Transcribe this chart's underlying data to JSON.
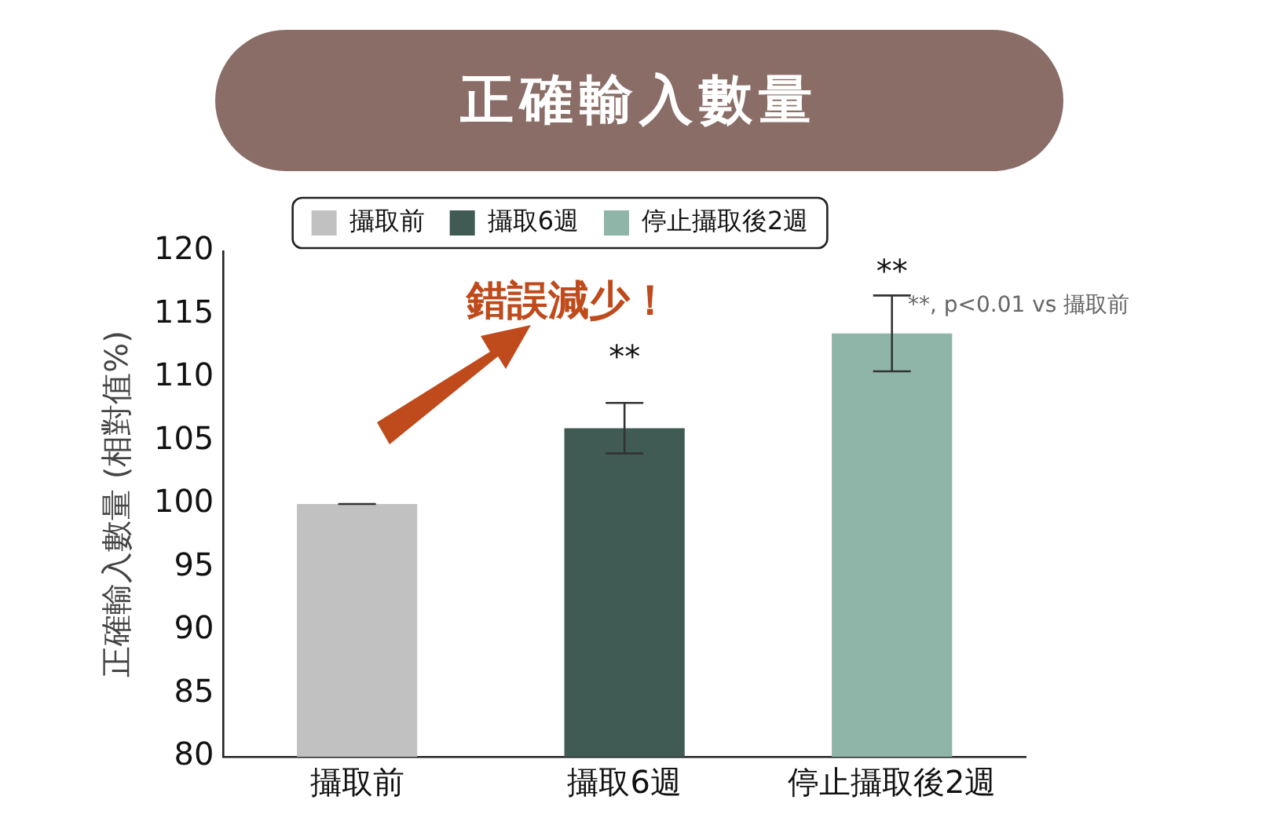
{
  "chart_data": {
    "type": "bar",
    "title": "正確輸入數量",
    "ylabel": "正確輸入數量 (相對值%)",
    "categories": [
      "攝取前",
      "攝取6週",
      "停止攝取後2週"
    ],
    "series": [
      {
        "name": "攝取前",
        "color": "#c1c1c1",
        "values": [
          100,
          null,
          null
        ],
        "errors": [
          0,
          null,
          null
        ]
      },
      {
        "name": "攝取6週",
        "color": "#3f5b53",
        "values": [
          null,
          106,
          null
        ],
        "errors": [
          null,
          2,
          null
        ]
      },
      {
        "name": "停止攝取後2週",
        "color": "#8fb5a9",
        "values": [
          null,
          null,
          113.5
        ],
        "errors": [
          null,
          null,
          3
        ]
      }
    ],
    "ylim": [
      80,
      120
    ],
    "yticks": [
      80,
      85,
      90,
      95,
      100,
      105,
      110,
      115,
      120
    ],
    "grid": false,
    "legend": "top",
    "annotations": [
      "**",
      "**",
      "錯誤減少！",
      "**, p<0.01 vs 攝取前"
    ]
  }
}
